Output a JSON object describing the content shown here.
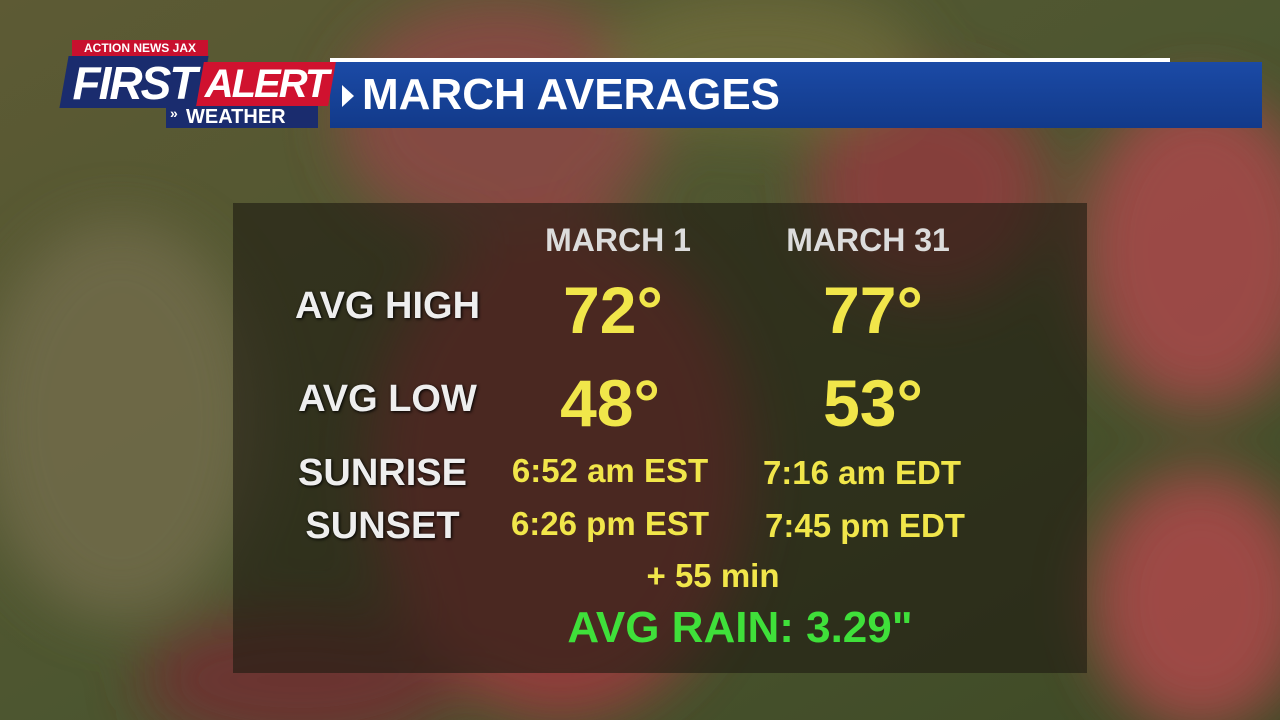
{
  "branding": {
    "station": "ACTION NEWS JAX",
    "first": "FIRST",
    "alert": "ALERT",
    "weather": "WEATHER"
  },
  "header": {
    "title": "MARCH AVERAGES"
  },
  "table": {
    "columns": [
      "MARCH 1",
      "MARCH 31"
    ],
    "rows": [
      [
        "AVG HIGH",
        "72°",
        "77°"
      ],
      [
        "AVG LOW",
        "48°",
        "53°"
      ],
      [
        "SUNRISE",
        "6:52 am EST",
        "7:16 am EDT"
      ],
      [
        "SUNSET",
        "6:26 pm EST",
        "7:45 pm EDT"
      ]
    ]
  },
  "daylight_change": "+ 55 min",
  "rain": "AVG RAIN: 3.29\""
}
